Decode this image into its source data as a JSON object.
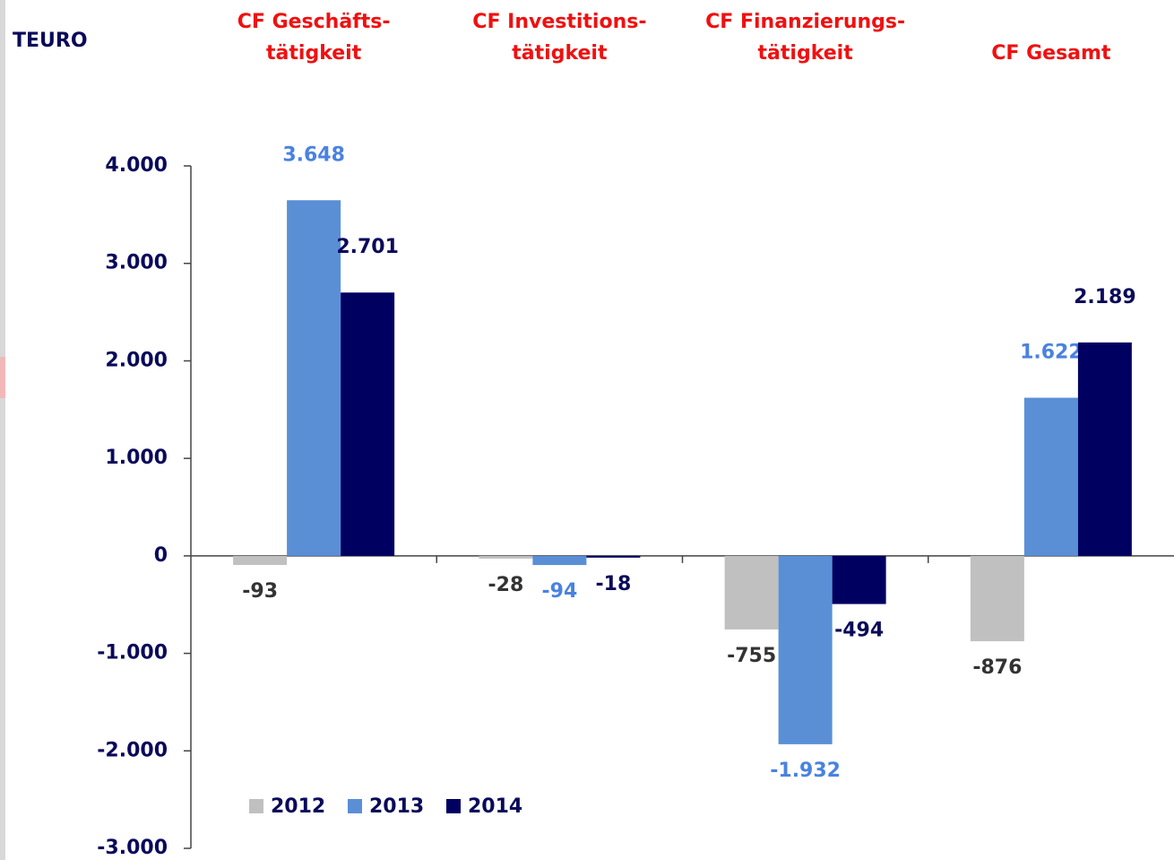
{
  "chart_data": {
    "type": "bar",
    "axis_title": "TEURO",
    "categories": [
      [
        "CF Geschäfts-",
        "tätigkeit"
      ],
      [
        "CF Investitions-",
        "tätigkeit"
      ],
      [
        "CF Finanzierungs-",
        "tätigkeit"
      ],
      [
        "CF Gesamt"
      ]
    ],
    "series": [
      {
        "name": "2012",
        "color": "#c0c0c0",
        "label_color": "#333333",
        "values": [
          -93,
          -28,
          -755,
          -876
        ],
        "value_labels": [
          "-93",
          "-28",
          "-755",
          "-876"
        ]
      },
      {
        "name": "2013",
        "color": "#5a8fd6",
        "label_color": "#4a82e0",
        "values": [
          3648,
          -94,
          -1932,
          1622
        ],
        "value_labels": [
          "3.648",
          "-94",
          "-1.932",
          "1.622"
        ]
      },
      {
        "name": "2014",
        "color": "#000060",
        "label_color": "#0a0a5a",
        "values": [
          2701,
          -18,
          -494,
          2189
        ],
        "value_labels": [
          "2.701",
          "-18",
          "-494",
          "2.189"
        ]
      }
    ],
    "ylim": [
      -3000,
      4000
    ],
    "yticks": [
      {
        "value": -3000,
        "label": "-3.000"
      },
      {
        "value": -2000,
        "label": "-2.000"
      },
      {
        "value": -1000,
        "label": "-1.000"
      },
      0,
      {
        "value": 1000,
        "label": "1.000"
      },
      {
        "value": 2000,
        "label": "2.000"
      },
      {
        "value": 3000,
        "label": "3.000"
      },
      {
        "value": 4000,
        "label": "4.000"
      }
    ],
    "legend": "bottom-left"
  }
}
